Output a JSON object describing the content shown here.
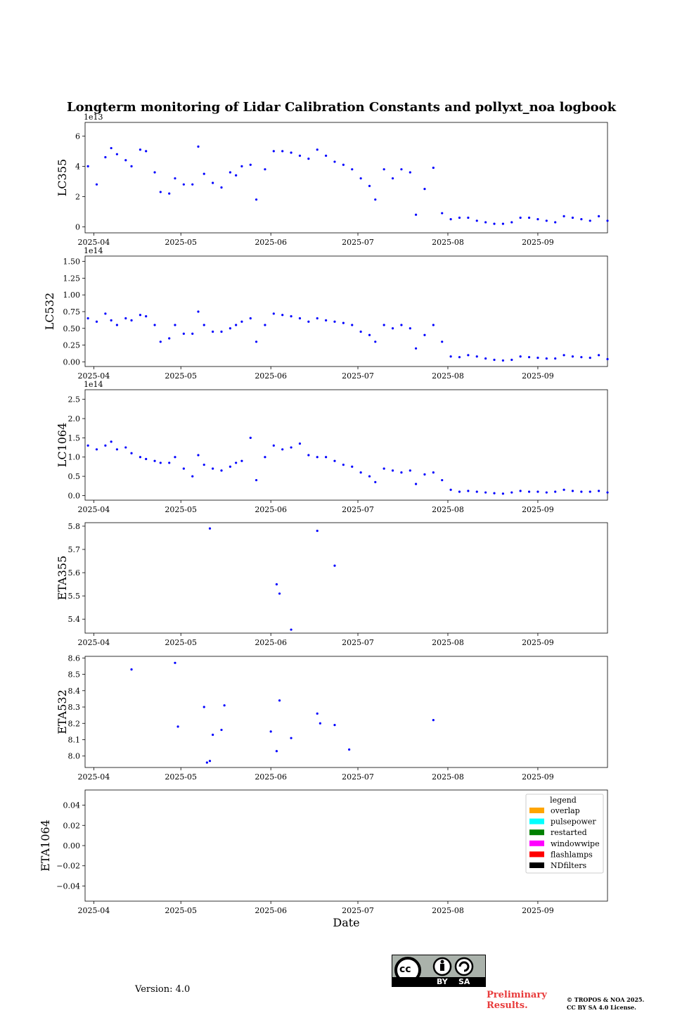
{
  "figure": {
    "title": "Longterm monitoring of Lidar Calibration Constants and pollyxt_noa logbook",
    "version": "Version: 4.0",
    "preliminary_line1": "Preliminary",
    "preliminary_line2": "Results.",
    "copyright_line1": "© TROPOS & NOA 2025.",
    "copyright_line2": "CC BY SA 4.0 License.",
    "license_badge": {
      "mark": "cc",
      "by": "BY",
      "sa": "SA"
    }
  },
  "chart_data": [
    {
      "type": "scatter",
      "ylabel": "LC355",
      "offset_text": "1e13",
      "xlim": [
        "2025-03-29",
        "2025-09-25"
      ],
      "ylim": [
        -0.4,
        6.9
      ],
      "yticks": [
        0,
        2,
        4,
        6
      ],
      "ytick_labels": [
        "0",
        "2",
        "4",
        "6"
      ],
      "xticks": [
        "2025-04-01",
        "2025-05-01",
        "2025-06-01",
        "2025-07-01",
        "2025-08-01",
        "2025-09-01"
      ],
      "xtick_labels": [
        "2025-04",
        "2025-05",
        "2025-06",
        "2025-07",
        "2025-08",
        "2025-09"
      ],
      "color": "#0000ff",
      "series": [
        {
          "x": [
            "2025-03-30",
            "2025-04-02",
            "2025-04-05",
            "2025-04-07",
            "2025-04-09",
            "2025-04-12",
            "2025-04-14",
            "2025-04-17",
            "2025-04-19",
            "2025-04-22",
            "2025-04-24",
            "2025-04-27",
            "2025-04-29",
            "2025-05-02",
            "2025-05-05",
            "2025-05-07",
            "2025-05-09",
            "2025-05-12",
            "2025-05-15",
            "2025-05-18",
            "2025-05-20",
            "2025-05-22",
            "2025-05-25",
            "2025-05-27",
            "2025-05-30",
            "2025-06-02",
            "2025-06-05",
            "2025-06-08",
            "2025-06-11",
            "2025-06-14",
            "2025-06-17",
            "2025-06-20",
            "2025-06-23",
            "2025-06-26",
            "2025-06-29",
            "2025-07-02",
            "2025-07-05",
            "2025-07-07",
            "2025-07-10",
            "2025-07-13",
            "2025-07-16",
            "2025-07-19",
            "2025-07-21",
            "2025-07-24",
            "2025-07-27",
            "2025-07-30",
            "2025-08-02",
            "2025-08-05",
            "2025-08-08",
            "2025-08-11",
            "2025-08-14",
            "2025-08-17",
            "2025-08-20",
            "2025-08-23",
            "2025-08-26",
            "2025-08-29",
            "2025-09-01",
            "2025-09-04",
            "2025-09-07",
            "2025-09-10",
            "2025-09-13",
            "2025-09-16",
            "2025-09-19",
            "2025-09-22",
            "2025-09-25"
          ],
          "y": [
            4.0,
            2.8,
            4.6,
            5.2,
            4.8,
            4.4,
            4.0,
            5.1,
            5.0,
            3.6,
            2.3,
            2.2,
            3.2,
            2.8,
            2.8,
            5.3,
            3.5,
            2.9,
            2.6,
            3.6,
            3.4,
            4.0,
            4.1,
            1.8,
            3.8,
            5.0,
            5.0,
            4.9,
            4.7,
            4.5,
            5.1,
            4.7,
            4.3,
            4.1,
            3.8,
            3.2,
            2.7,
            1.8,
            3.8,
            3.2,
            3.8,
            3.6,
            0.8,
            2.5,
            3.9,
            0.9,
            0.5,
            0.6,
            0.6,
            0.4,
            0.3,
            0.2,
            0.2,
            0.3,
            0.6,
            0.6,
            0.5,
            0.4,
            0.3,
            0.7,
            0.6,
            0.5,
            0.4,
            0.7,
            0.4
          ]
        }
      ]
    },
    {
      "type": "scatter",
      "ylabel": "LC532",
      "offset_text": "1e14",
      "xlim": [
        "2025-03-29",
        "2025-09-25"
      ],
      "ylim": [
        -0.07,
        1.58
      ],
      "yticks": [
        0,
        0.25,
        0.5,
        0.75,
        1.0,
        1.25,
        1.5
      ],
      "ytick_labels": [
        "0.00",
        "0.25",
        "0.50",
        "0.75",
        "1.00",
        "1.25",
        "1.50"
      ],
      "xticks": [
        "2025-04-01",
        "2025-05-01",
        "2025-06-01",
        "2025-07-01",
        "2025-08-01",
        "2025-09-01"
      ],
      "xtick_labels": [
        "2025-04",
        "2025-05",
        "2025-06",
        "2025-07",
        "2025-08",
        "2025-09"
      ],
      "color": "#0000ff",
      "series": [
        {
          "x": [
            "2025-03-30",
            "2025-04-02",
            "2025-04-05",
            "2025-04-07",
            "2025-04-09",
            "2025-04-12",
            "2025-04-14",
            "2025-04-17",
            "2025-04-19",
            "2025-04-22",
            "2025-04-24",
            "2025-04-27",
            "2025-04-29",
            "2025-05-02",
            "2025-05-05",
            "2025-05-07",
            "2025-05-09",
            "2025-05-12",
            "2025-05-15",
            "2025-05-18",
            "2025-05-20",
            "2025-05-22",
            "2025-05-25",
            "2025-05-27",
            "2025-05-30",
            "2025-06-02",
            "2025-06-05",
            "2025-06-08",
            "2025-06-11",
            "2025-06-14",
            "2025-06-17",
            "2025-06-20",
            "2025-06-23",
            "2025-06-26",
            "2025-06-29",
            "2025-07-02",
            "2025-07-05",
            "2025-07-07",
            "2025-07-10",
            "2025-07-13",
            "2025-07-16",
            "2025-07-19",
            "2025-07-21",
            "2025-07-24",
            "2025-07-27",
            "2025-07-30",
            "2025-08-02",
            "2025-08-05",
            "2025-08-08",
            "2025-08-11",
            "2025-08-14",
            "2025-08-17",
            "2025-08-20",
            "2025-08-23",
            "2025-08-26",
            "2025-08-29",
            "2025-09-01",
            "2025-09-04",
            "2025-09-07",
            "2025-09-10",
            "2025-09-13",
            "2025-09-16",
            "2025-09-19",
            "2025-09-22",
            "2025-09-25"
          ],
          "y": [
            0.65,
            0.6,
            0.72,
            0.62,
            0.55,
            0.65,
            0.62,
            0.7,
            0.68,
            0.55,
            0.3,
            0.35,
            0.55,
            0.42,
            0.42,
            0.75,
            0.55,
            0.45,
            0.45,
            0.5,
            0.55,
            0.6,
            0.65,
            0.3,
            0.55,
            0.72,
            0.7,
            0.68,
            0.65,
            0.6,
            0.65,
            0.62,
            0.6,
            0.58,
            0.55,
            0.45,
            0.4,
            0.3,
            0.55,
            0.5,
            0.55,
            0.5,
            0.2,
            0.4,
            0.55,
            0.3,
            0.08,
            0.07,
            0.1,
            0.08,
            0.05,
            0.03,
            0.02,
            0.03,
            0.08,
            0.07,
            0.06,
            0.05,
            0.05,
            0.1,
            0.08,
            0.07,
            0.06,
            0.1,
            0.04
          ]
        }
      ]
    },
    {
      "type": "scatter",
      "ylabel": "LC1064",
      "offset_text": "1e14",
      "xlim": [
        "2025-03-29",
        "2025-09-25"
      ],
      "ylim": [
        -0.12,
        2.75
      ],
      "yticks": [
        0,
        0.5,
        1.0,
        1.5,
        2.0,
        2.5
      ],
      "ytick_labels": [
        "0.0",
        "0.5",
        "1.0",
        "1.5",
        "2.0",
        "2.5"
      ],
      "xticks": [
        "2025-04-01",
        "2025-05-01",
        "2025-06-01",
        "2025-07-01",
        "2025-08-01",
        "2025-09-01"
      ],
      "xtick_labels": [
        "2025-04",
        "2025-05",
        "2025-06",
        "2025-07",
        "2025-08",
        "2025-09"
      ],
      "color": "#0000ff",
      "series": [
        {
          "x": [
            "2025-03-30",
            "2025-04-02",
            "2025-04-05",
            "2025-04-07",
            "2025-04-09",
            "2025-04-12",
            "2025-04-14",
            "2025-04-17",
            "2025-04-19",
            "2025-04-22",
            "2025-04-24",
            "2025-04-27",
            "2025-04-29",
            "2025-05-02",
            "2025-05-05",
            "2025-05-07",
            "2025-05-09",
            "2025-05-12",
            "2025-05-15",
            "2025-05-18",
            "2025-05-20",
            "2025-05-22",
            "2025-05-25",
            "2025-05-27",
            "2025-05-30",
            "2025-06-02",
            "2025-06-05",
            "2025-06-08",
            "2025-06-11",
            "2025-06-14",
            "2025-06-17",
            "2025-06-20",
            "2025-06-23",
            "2025-06-26",
            "2025-06-29",
            "2025-07-02",
            "2025-07-05",
            "2025-07-07",
            "2025-07-10",
            "2025-07-13",
            "2025-07-16",
            "2025-07-19",
            "2025-07-21",
            "2025-07-24",
            "2025-07-27",
            "2025-07-30",
            "2025-08-02",
            "2025-08-05",
            "2025-08-08",
            "2025-08-11",
            "2025-08-14",
            "2025-08-17",
            "2025-08-20",
            "2025-08-23",
            "2025-08-26",
            "2025-08-29",
            "2025-09-01",
            "2025-09-04",
            "2025-09-07",
            "2025-09-10",
            "2025-09-13",
            "2025-09-16",
            "2025-09-19",
            "2025-09-22",
            "2025-09-25"
          ],
          "y": [
            1.3,
            1.2,
            1.3,
            1.4,
            1.2,
            1.25,
            1.1,
            1.0,
            0.95,
            0.9,
            0.85,
            0.85,
            1.0,
            0.7,
            0.5,
            1.05,
            0.8,
            0.7,
            0.65,
            0.75,
            0.85,
            0.9,
            1.5,
            0.4,
            1.0,
            1.3,
            1.2,
            1.25,
            1.35,
            1.05,
            1.0,
            1.0,
            0.9,
            0.8,
            0.75,
            0.6,
            0.5,
            0.35,
            0.7,
            0.65,
            0.6,
            0.65,
            0.3,
            0.55,
            0.6,
            0.4,
            0.15,
            0.1,
            0.12,
            0.1,
            0.08,
            0.06,
            0.05,
            0.08,
            0.12,
            0.1,
            0.1,
            0.08,
            0.1,
            0.15,
            0.12,
            0.1,
            0.1,
            0.12,
            0.08
          ]
        }
      ]
    },
    {
      "type": "scatter",
      "ylabel": "ETA355",
      "xlim": [
        "2025-03-29",
        "2025-09-25"
      ],
      "ylim": [
        5.34,
        5.815
      ],
      "yticks": [
        5.4,
        5.5,
        5.6,
        5.7,
        5.8
      ],
      "ytick_labels": [
        "5.4",
        "5.5",
        "5.6",
        "5.7",
        "5.8"
      ],
      "xticks": [
        "2025-04-01",
        "2025-05-01",
        "2025-06-01",
        "2025-07-01",
        "2025-08-01",
        "2025-09-01"
      ],
      "xtick_labels": [
        "2025-04",
        "2025-05",
        "2025-06",
        "2025-07",
        "2025-08",
        "2025-09"
      ],
      "color": "#0000ff",
      "series": [
        {
          "x": [
            "2025-05-11",
            "2025-06-03",
            "2025-06-04",
            "2025-06-08",
            "2025-06-17",
            "2025-06-23"
          ],
          "y": [
            5.79,
            5.55,
            5.51,
            5.355,
            5.78,
            5.63
          ]
        }
      ]
    },
    {
      "type": "scatter",
      "ylabel": "ETA532",
      "xlim": [
        "2025-03-29",
        "2025-09-25"
      ],
      "ylim": [
        7.93,
        8.61
      ],
      "yticks": [
        8.0,
        8.1,
        8.2,
        8.3,
        8.4,
        8.5,
        8.6
      ],
      "ytick_labels": [
        "8.0",
        "8.1",
        "8.2",
        "8.3",
        "8.4",
        "8.5",
        "8.6"
      ],
      "xticks": [
        "2025-04-01",
        "2025-05-01",
        "2025-06-01",
        "2025-07-01",
        "2025-08-01",
        "2025-09-01"
      ],
      "xtick_labels": [
        "2025-04",
        "2025-05",
        "2025-06",
        "2025-07",
        "2025-08",
        "2025-09"
      ],
      "color": "#0000ff",
      "series": [
        {
          "x": [
            "2025-04-14",
            "2025-04-29",
            "2025-04-30",
            "2025-05-09",
            "2025-05-10",
            "2025-05-11",
            "2025-05-12",
            "2025-05-15",
            "2025-05-16",
            "2025-06-01",
            "2025-06-03",
            "2025-06-04",
            "2025-06-08",
            "2025-06-17",
            "2025-06-18",
            "2025-06-23",
            "2025-06-28",
            "2025-07-27"
          ],
          "y": [
            8.53,
            8.57,
            8.18,
            8.3,
            7.96,
            7.97,
            8.13,
            8.16,
            8.31,
            8.15,
            8.03,
            8.34,
            8.11,
            8.26,
            8.2,
            8.19,
            8.04,
            8.22
          ]
        }
      ]
    },
    {
      "type": "scatter",
      "ylabel": "ETA1064",
      "xlabel": "Date",
      "xlim": [
        "2025-03-29",
        "2025-09-25"
      ],
      "ylim": [
        -0.055,
        0.055
      ],
      "yticks": [
        -0.04,
        -0.02,
        0.0,
        0.02,
        0.04
      ],
      "ytick_labels": [
        "−0.04",
        "−0.02",
        "0.00",
        "0.02",
        "0.04"
      ],
      "xticks": [
        "2025-04-01",
        "2025-05-01",
        "2025-06-01",
        "2025-07-01",
        "2025-08-01",
        "2025-09-01"
      ],
      "xtick_labels": [
        "2025-04",
        "2025-05",
        "2025-06",
        "2025-07",
        "2025-08",
        "2025-09"
      ],
      "color": "#0000ff",
      "series": [],
      "legend": {
        "title": "legend",
        "placement": "top-right",
        "entries": [
          {
            "label": "overlap",
            "color": "#ffa500"
          },
          {
            "label": "pulsepower",
            "color": "#00ffff"
          },
          {
            "label": "restarted",
            "color": "#008000"
          },
          {
            "label": "windowwipe",
            "color": "#ff00ff"
          },
          {
            "label": "flashlamps",
            "color": "#ff0000"
          },
          {
            "label": "NDfilters",
            "color": "#000000"
          }
        ]
      }
    }
  ]
}
